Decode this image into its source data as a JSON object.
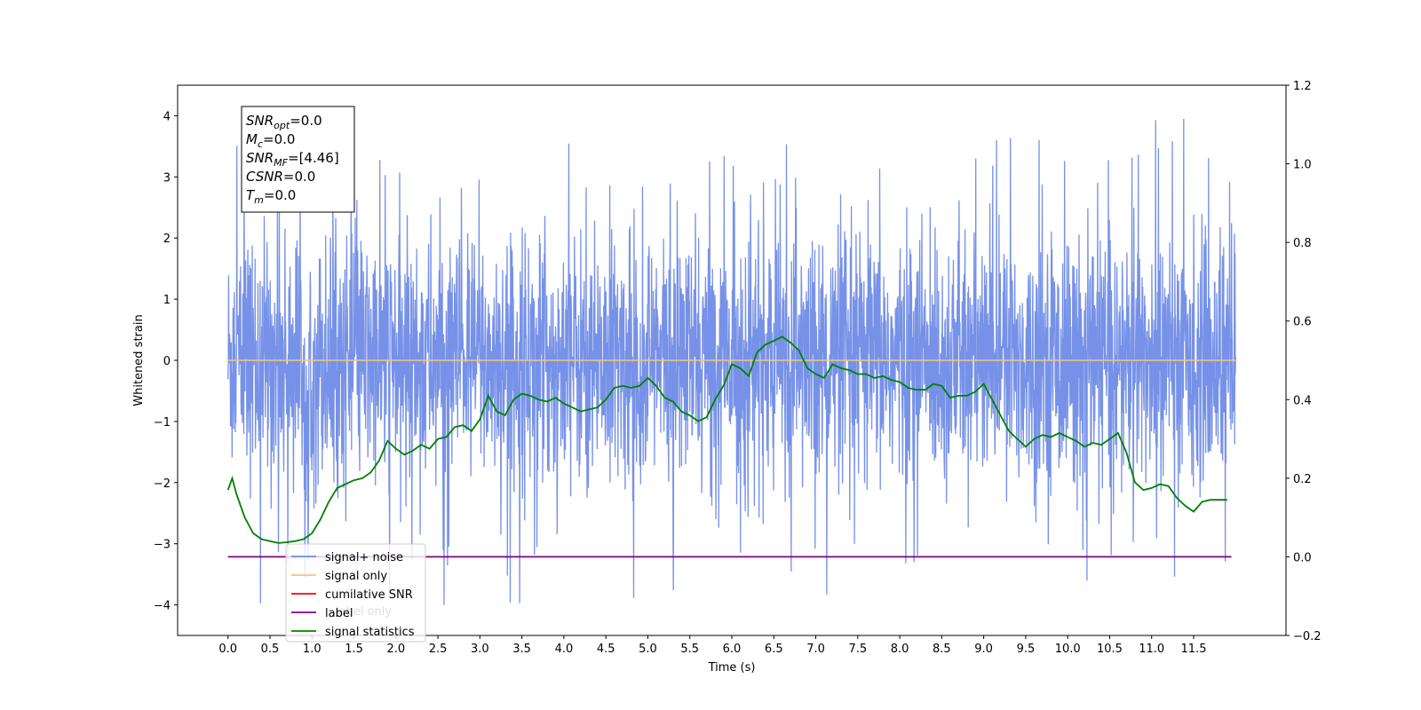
{
  "chart_data": {
    "type": "line",
    "xlabel": "Time (s)",
    "ylabel": "Whitened strain",
    "xlim": [
      -0.6,
      12.6
    ],
    "ylim": [
      -4.5,
      4.5
    ],
    "y2lim": [
      -0.2,
      1.2
    ],
    "x_ticks": [
      0.0,
      0.5,
      1.0,
      1.5,
      2.0,
      2.5,
      3.0,
      3.5,
      4.0,
      4.5,
      5.0,
      5.5,
      6.0,
      6.5,
      7.0,
      7.5,
      8.0,
      8.5,
      9.0,
      9.5,
      10.0,
      10.5,
      11.0,
      11.5
    ],
    "x_tick_labels": [
      "0.0",
      "0.5",
      "1.0",
      "1.5",
      "2.0",
      "2.5",
      "3.0",
      "3.5",
      "4.0",
      "4.5",
      "5.0",
      "5.5",
      "6.0",
      "6.5",
      "7.0",
      "7.5",
      "8.0",
      "8.5",
      "9.0",
      "9.5",
      "10.0",
      "10.5",
      "11.0",
      "11.5"
    ],
    "y_ticks": [
      -4,
      -3,
      -2,
      -1,
      0,
      1,
      2,
      3,
      4
    ],
    "y_tick_labels": [
      "−4",
      "−3",
      "−2",
      "−1",
      "0",
      "1",
      "2",
      "3",
      "4"
    ],
    "y2_ticks": [
      -0.2,
      0.0,
      0.2,
      0.4,
      0.6,
      0.8,
      1.0,
      1.2
    ],
    "y2_tick_labels": [
      "−0.2",
      "0.0",
      "0.2",
      "0.4",
      "0.6",
      "0.8",
      "1.0",
      "1.2"
    ],
    "grid": false,
    "legend_position": "lower-left",
    "series": [
      {
        "name": "signal+ noise",
        "axis": "left",
        "color": "#6f8be6",
        "x_range": [
          0.0,
          12.0
        ],
        "amplitude_range": [
          -4.0,
          4.1
        ],
        "note_kind": "dense-noise"
      },
      {
        "name": "signal only",
        "axis": "left",
        "color": "#f7c57a",
        "x": [
          0.0,
          12.0
        ],
        "values": [
          0.0,
          0.0
        ]
      },
      {
        "name": "cumilative SNR",
        "axis": "right",
        "color": "#ff0000",
        "x": [],
        "values": []
      },
      {
        "name": "label",
        "axis": "right",
        "color": "#800080",
        "x": [
          0.0,
          11.95
        ],
        "values": [
          0.0,
          0.0
        ]
      },
      {
        "name": "signal statistics",
        "axis": "right",
        "color": "#008000",
        "x": [
          0.0,
          0.05,
          0.1,
          0.2,
          0.3,
          0.4,
          0.5,
          0.6,
          0.7,
          0.8,
          0.9,
          1.0,
          1.1,
          1.2,
          1.3,
          1.4,
          1.5,
          1.6,
          1.7,
          1.8,
          1.9,
          2.0,
          2.1,
          2.2,
          2.3,
          2.4,
          2.5,
          2.6,
          2.7,
          2.8,
          2.9,
          3.0,
          3.1,
          3.2,
          3.3,
          3.4,
          3.5,
          3.6,
          3.7,
          3.8,
          3.9,
          4.0,
          4.1,
          4.2,
          4.3,
          4.4,
          4.5,
          4.6,
          4.7,
          4.8,
          4.9,
          5.0,
          5.1,
          5.2,
          5.3,
          5.4,
          5.5,
          5.6,
          5.7,
          5.8,
          5.9,
          6.0,
          6.1,
          6.2,
          6.3,
          6.4,
          6.5,
          6.6,
          6.7,
          6.8,
          6.9,
          7.0,
          7.1,
          7.2,
          7.3,
          7.4,
          7.5,
          7.6,
          7.7,
          7.8,
          7.9,
          8.0,
          8.1,
          8.2,
          8.3,
          8.4,
          8.5,
          8.6,
          8.7,
          8.8,
          8.9,
          9.0,
          9.1,
          9.2,
          9.3,
          9.4,
          9.5,
          9.6,
          9.7,
          9.8,
          9.9,
          10.0,
          10.1,
          10.2,
          10.3,
          10.4,
          10.5,
          10.6,
          10.7,
          10.8,
          10.9,
          11.0,
          11.1,
          11.2,
          11.3,
          11.4,
          11.5,
          11.6,
          11.7,
          11.8,
          11.9
        ],
        "values": [
          0.17,
          0.2,
          0.16,
          0.1,
          0.06,
          0.045,
          0.04,
          0.035,
          0.037,
          0.04,
          0.045,
          0.06,
          0.095,
          0.14,
          0.175,
          0.185,
          0.195,
          0.2,
          0.215,
          0.245,
          0.295,
          0.275,
          0.26,
          0.27,
          0.285,
          0.275,
          0.3,
          0.305,
          0.33,
          0.335,
          0.32,
          0.35,
          0.41,
          0.37,
          0.36,
          0.4,
          0.415,
          0.41,
          0.4,
          0.395,
          0.405,
          0.39,
          0.38,
          0.37,
          0.375,
          0.38,
          0.4,
          0.43,
          0.435,
          0.43,
          0.435,
          0.455,
          0.435,
          0.405,
          0.395,
          0.37,
          0.36,
          0.345,
          0.355,
          0.4,
          0.435,
          0.49,
          0.48,
          0.46,
          0.52,
          0.54,
          0.55,
          0.56,
          0.545,
          0.525,
          0.48,
          0.465,
          0.455,
          0.49,
          0.48,
          0.475,
          0.465,
          0.465,
          0.455,
          0.46,
          0.45,
          0.445,
          0.43,
          0.425,
          0.425,
          0.44,
          0.435,
          0.405,
          0.41,
          0.41,
          0.42,
          0.44,
          0.4,
          0.36,
          0.32,
          0.3,
          0.28,
          0.3,
          0.31,
          0.305,
          0.315,
          0.305,
          0.295,
          0.28,
          0.29,
          0.285,
          0.3,
          0.315,
          0.265,
          0.19,
          0.17,
          0.175,
          0.185,
          0.18,
          0.15,
          0.13,
          0.115,
          0.14,
          0.145,
          0.145,
          0.145
        ]
      }
    ],
    "annotation": {
      "lines": [
        {
          "name": "SNR",
          "sub": "opt",
          "value": "=0.0"
        },
        {
          "name": "M",
          "sub": "c",
          "value": "=0.0"
        },
        {
          "name": "SNR",
          "sub": "MF",
          "value": "=[4.46]"
        },
        {
          "name": "CSNR",
          "sub": "",
          "value": "=0.0"
        },
        {
          "name": "T",
          "sub": "m",
          "value": "=0.0"
        }
      ]
    },
    "legend": [
      {
        "label": "signal+ noise",
        "color": "#6f8be6"
      },
      {
        "label": "signal only",
        "color": "#f7c57a"
      },
      {
        "label": "cumilative SNR",
        "color": "#ff0000"
      },
      {
        "label": "label",
        "color": "#800080"
      },
      {
        "label": "signal statistics",
        "color": "#008000"
      }
    ],
    "hidden_legend_text": "label only"
  }
}
